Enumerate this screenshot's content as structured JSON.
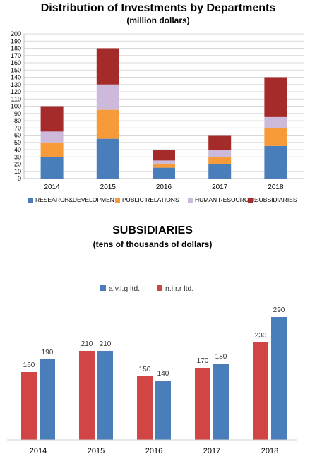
{
  "chart_data": [
    {
      "type": "bar",
      "stacked": true,
      "title": "Distribution of Investments by Departments",
      "subtitle": "(million dollars)",
      "categories": [
        "2014",
        "2015",
        "2016",
        "2017",
        "2018"
      ],
      "ylim": [
        0,
        200
      ],
      "ytick_step": 10,
      "grid": true,
      "legend_position": "bottom",
      "series": [
        {
          "name": "RESEARCH&DEVELOPMENT",
          "color": "#4a7ebb",
          "values": [
            30,
            55,
            15,
            20,
            45
          ]
        },
        {
          "name": "PUBLIC RELATIONS",
          "color": "#f79a3a",
          "values": [
            20,
            40,
            5,
            10,
            25
          ]
        },
        {
          "name": "HUMAN RESOURCES",
          "color": "#cdbadb",
          "values": [
            15,
            35,
            5,
            10,
            15
          ]
        },
        {
          "name": "SUBSIDIARIES",
          "color": "#a52a2a",
          "values": [
            35,
            50,
            15,
            20,
            55
          ]
        }
      ]
    },
    {
      "type": "bar",
      "title": "SUBSIDIARIES",
      "subtitle": "(tens of thousands of dollars)",
      "categories": [
        "2014",
        "2015",
        "2016",
        "2017",
        "2018"
      ],
      "ylim": [
        0,
        320
      ],
      "grid": false,
      "legend_position": "top",
      "series": [
        {
          "name": "n.i.r.r ltd.",
          "color": "#d24545",
          "values": [
            160,
            210,
            150,
            170,
            230
          ]
        },
        {
          "name": "a.v.i.g ltd.",
          "color": "#4a7ebb",
          "values": [
            190,
            210,
            140,
            180,
            290
          ]
        }
      ]
    }
  ]
}
